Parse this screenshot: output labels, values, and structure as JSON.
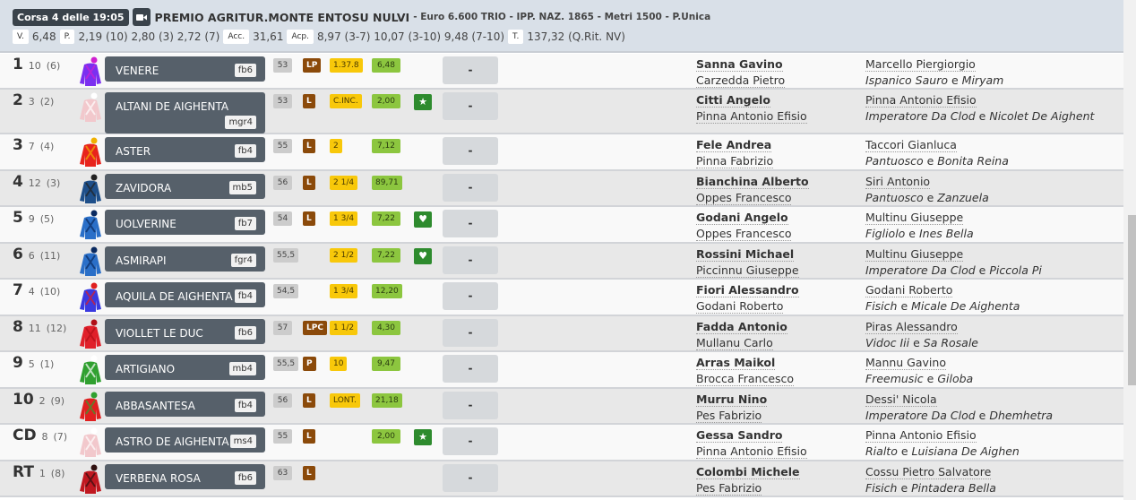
{
  "race": {
    "corsa": "Corsa 4 delle 19:05",
    "title": "PREMIO AGRITUR.MONTE ENTOSU NULVI",
    "subtitle": "- Euro 6.600 TRIO - IPP. NAZ. 1865 - Metri 1500 - P.Unica",
    "quotes": [
      {
        "label": "V.",
        "value": "6,48"
      },
      {
        "label": "P.",
        "value": "2,19 (10) 2,80 (3) 2,72 (7)"
      },
      {
        "label": "Acc.",
        "value": "31,61"
      },
      {
        "label": "Acp.",
        "value": "8,97 (3-7) 10,07 (3-10) 9,48 (7-10)"
      },
      {
        "label": "T.",
        "value": "137,32 (Q.Rit. NV)"
      }
    ]
  },
  "connector": "e",
  "runners": [
    {
      "pos": "1",
      "num": "10",
      "stall": "(6)",
      "name": "VENERE",
      "tag": "fb6",
      "weight": "53",
      "badge": "LP",
      "dist": "1.37.8",
      "odds": "6,48",
      "icon": "",
      "result": "-",
      "jockey": "Sanna Gavino",
      "trainer": "Carzedda Pietro",
      "owner": "Marcello Piergiorgio",
      "sire": "Ispanico Sauro",
      "dam": "Miryam",
      "silk": [
        "#7b2ff0",
        "#d020d0"
      ]
    },
    {
      "pos": "2",
      "num": "3",
      "stall": "(2)",
      "name": "ALTANI DE AIGHENTA",
      "tag": "mgr4",
      "weight": "53",
      "badge": "L",
      "dist": "C.INC.",
      "odds": "2,00",
      "icon": "star-icon",
      "result": "-",
      "jockey": "Citti Angelo",
      "trainer": "Pinna Antonio Efisio",
      "owner": "Pinna Antonio Efisio",
      "sire": "Imperatore Da Clod",
      "dam": "Nicolet De Aighent",
      "silk": [
        "#f2c8cc",
        "#ffffff"
      ]
    },
    {
      "pos": "3",
      "num": "7",
      "stall": "(4)",
      "name": "ASTER",
      "tag": "fb4",
      "weight": "55",
      "badge": "L",
      "dist": "2",
      "odds": "7,12",
      "icon": "",
      "result": "-",
      "jockey": "Fele Andrea",
      "trainer": "Pinna Fabrizio",
      "owner": "Taccori Gianluca",
      "sire": "Pantuosco",
      "dam": "Bonita Reina",
      "silk": [
        "#e8241c",
        "#f0b000"
      ]
    },
    {
      "pos": "4",
      "num": "12",
      "stall": "(3)",
      "name": "ZAVIDORA",
      "tag": "mb5",
      "weight": "56",
      "badge": "L",
      "dist": "2 1/4",
      "odds": "89,71",
      "icon": "",
      "result": "-",
      "jockey": "Bianchina Alberto",
      "trainer": "Oppes Francesco",
      "owner": "Siri Antonio",
      "sire": "Pantuosco",
      "dam": "Zanzuela",
      "silk": [
        "#1e4f8a",
        "#222222"
      ]
    },
    {
      "pos": "5",
      "num": "9",
      "stall": "(5)",
      "name": "UOLVERINE",
      "tag": "fb7",
      "weight": "54",
      "badge": "L",
      "dist": "1 3/4",
      "odds": "7,22",
      "icon": "heart-icon",
      "result": "-",
      "jockey": "Godani Angelo",
      "trainer": "Oppes Francesco",
      "owner": "Multinu Giuseppe",
      "sire": "Figliolo",
      "dam": "Ines Bella",
      "silk": [
        "#2a6fc8",
        "#0a2a60"
      ]
    },
    {
      "pos": "6",
      "num": "6",
      "stall": "(11)",
      "name": "ASMIRAPI",
      "tag": "fgr4",
      "weight": "55,5",
      "badge": "",
      "dist": "2 1/2",
      "odds": "7,22",
      "icon": "heart-icon",
      "result": "-",
      "jockey": "Rossini Michael",
      "trainer": "Piccinnu Giuseppe",
      "owner": "Multinu Giuseppe",
      "sire": "Imperatore Da Clod",
      "dam": "Piccola Pi",
      "silk": [
        "#2a6fc8",
        "#0a2a60"
      ]
    },
    {
      "pos": "7",
      "num": "4",
      "stall": "(10)",
      "name": "AQUILA DE AIGHENTA",
      "tag": "fb4",
      "weight": "54,5",
      "badge": "",
      "dist": "1 3/4",
      "odds": "12,20",
      "icon": "",
      "result": "-",
      "jockey": "Fiori Alessandro",
      "trainer": "Godani Roberto",
      "owner": "Godani Roberto",
      "sire": "Fisich",
      "dam": "Micale De Aighenta",
      "silk": [
        "#3a3ae0",
        "#e02020"
      ]
    },
    {
      "pos": "8",
      "num": "11",
      "stall": "(12)",
      "name": "VIOLLET LE DUC",
      "tag": "fb6",
      "weight": "57",
      "badge": "LPC",
      "dist": "1 1/2",
      "odds": "4,30",
      "icon": "",
      "result": "-",
      "jockey": "Fadda Antonio",
      "trainer": "Mullanu Carlo",
      "owner": "Piras Alessandro",
      "sire": "Vidoc Iii",
      "dam": "Sa Rosale",
      "silk": [
        "#e0202a",
        "#b01018"
      ]
    },
    {
      "pos": "9",
      "num": "5",
      "stall": "(1)",
      "name": "ARTIGIANO",
      "tag": "mb4",
      "weight": "55,5",
      "badge": "P",
      "dist": "10",
      "odds": "9,47",
      "icon": "",
      "result": "-",
      "jockey": "Arras Maikol",
      "trainer": "Brocca Francesco",
      "owner": "Mannu Gavino",
      "sire": "Freemusic",
      "dam": "Giloba",
      "silk": [
        "#30a030",
        "#ffffff"
      ]
    },
    {
      "pos": "10",
      "num": "2",
      "stall": "(9)",
      "name": "ABBASANTESA",
      "tag": "fb4",
      "weight": "56",
      "badge": "L",
      "dist": "LONT.",
      "odds": "21,18",
      "icon": "",
      "result": "-",
      "jockey": "Murru Nino",
      "trainer": "Pes Fabrizio",
      "owner": "Dessi' Nicola",
      "sire": "Imperatore Da Clod",
      "dam": "Dhemhetra",
      "silk": [
        "#e02020",
        "#30a030"
      ]
    },
    {
      "pos": "CD",
      "num": "8",
      "stall": "(7)",
      "name": "ASTRO DE AIGHENTA",
      "tag": "ms4",
      "weight": "55",
      "badge": "L",
      "dist": "",
      "odds": "2,00",
      "icon": "star-icon",
      "result": "-",
      "jockey": "Gessa Sandro",
      "trainer": "Pinna Antonio Efisio",
      "owner": "Pinna Antonio Efisio",
      "sire": "Rialto",
      "dam": "Luisiana De Aighen",
      "silk": [
        "#f2c8cc",
        "#ffffff"
      ]
    },
    {
      "pos": "RT",
      "num": "1",
      "stall": "(8)",
      "name": "VERBENA ROSA",
      "tag": "fb6",
      "weight": "63",
      "badge": "L",
      "dist": "",
      "odds": "",
      "icon": "",
      "result": "-",
      "jockey": "Colombi Michele",
      "trainer": "Pes Fabrizio",
      "owner": "Cossu Pietro Salvatore",
      "sire": "Fisich",
      "dam": "Pintadera Bella",
      "silk": [
        "#c01820",
        "#301010"
      ]
    }
  ]
}
